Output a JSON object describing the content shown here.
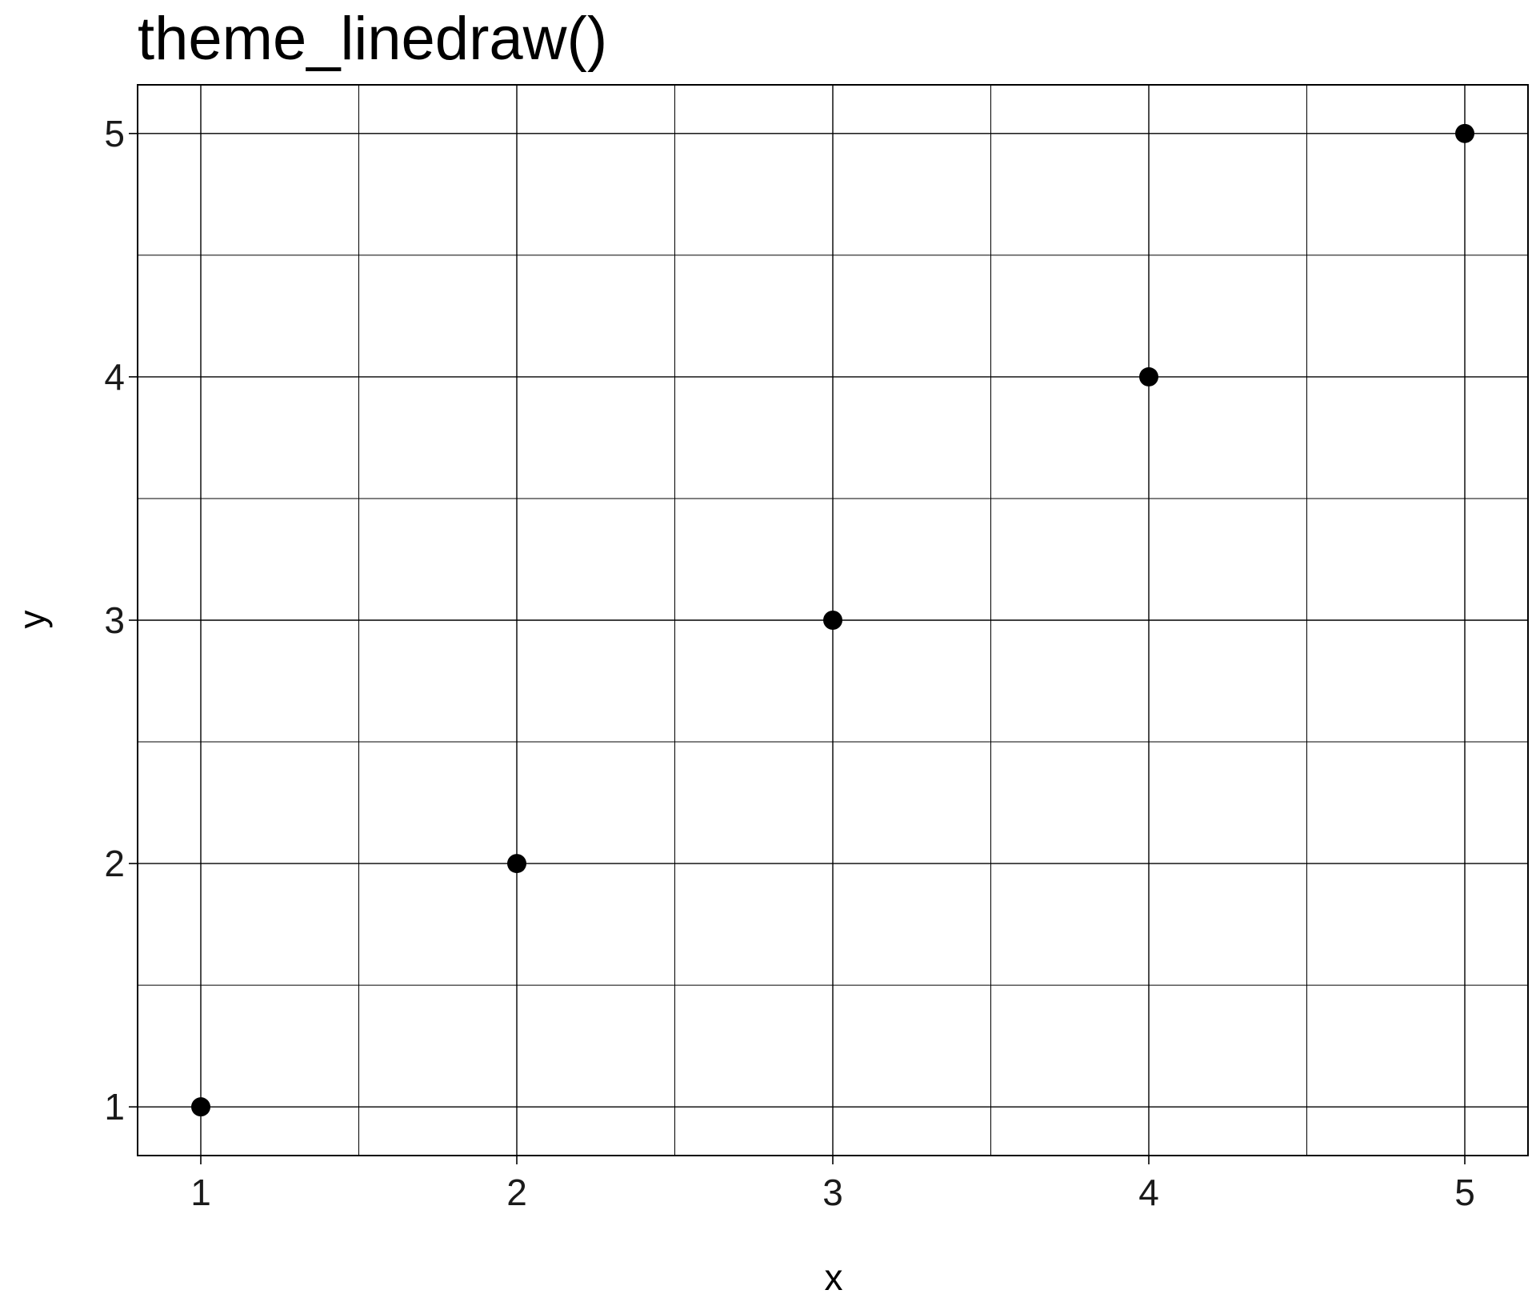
{
  "chart_data": {
    "type": "scatter",
    "title": "theme_linedraw()",
    "xlabel": "x",
    "ylabel": "y",
    "x": [
      1,
      2,
      3,
      4,
      5
    ],
    "y": [
      1,
      2,
      3,
      4,
      5
    ],
    "xlim": [
      0.8,
      5.2
    ],
    "ylim": [
      0.8,
      5.2
    ],
    "x_ticks": [
      1,
      2,
      3,
      4,
      5
    ],
    "y_ticks": [
      1,
      2,
      3,
      4,
      5
    ],
    "x_minor": [
      1.5,
      2.5,
      3.5,
      4.5
    ],
    "y_minor": [
      1.5,
      2.5,
      3.5,
      4.5
    ],
    "grid": true,
    "point_color": "#000000",
    "grid_color": "#000000",
    "panel_border_color": "#000000",
    "background": "#ffffff"
  }
}
